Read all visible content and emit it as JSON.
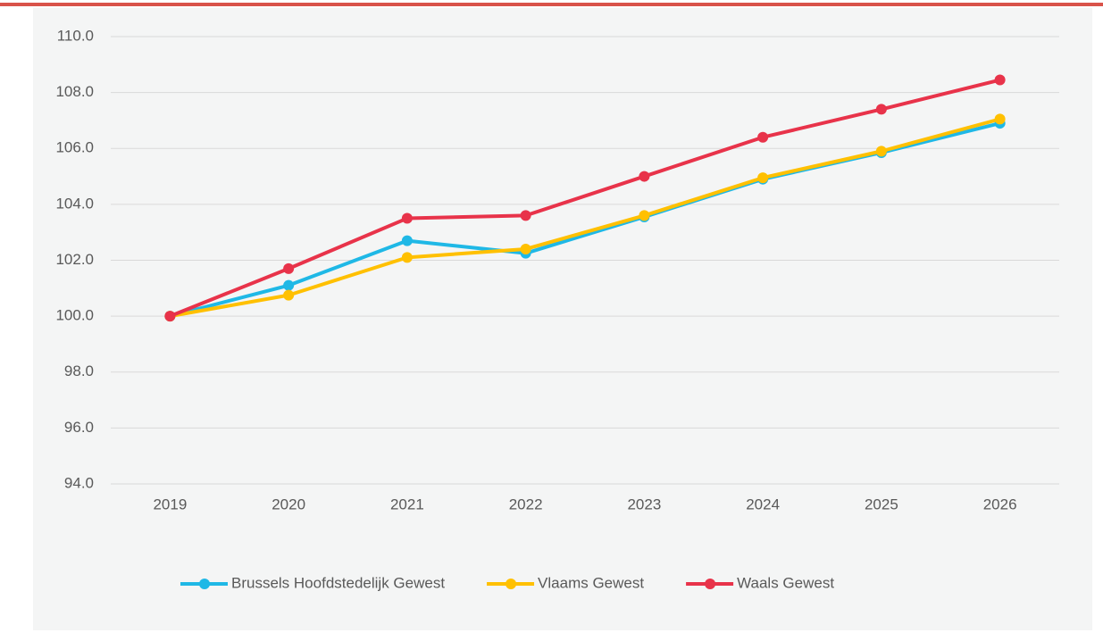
{
  "chart_data": {
    "type": "line",
    "categories": [
      "2019",
      "2020",
      "2021",
      "2022",
      "2023",
      "2024",
      "2025",
      "2026"
    ],
    "series": [
      {
        "name": "Brussels Hoofdstedelijk Gewest",
        "color": "#1fb8e6",
        "values": [
          100,
          101.1,
          102.7,
          102.25,
          103.55,
          104.9,
          105.85,
          106.9
        ]
      },
      {
        "name": "Vlaams Gewest",
        "color": "#ffc000",
        "values": [
          100,
          100.75,
          102.1,
          102.4,
          103.6,
          104.95,
          105.9,
          107.05
        ]
      },
      {
        "name": "Waals Gewest",
        "color": "#e8334a",
        "values": [
          100,
          101.7,
          103.5,
          103.6,
          105.0,
          106.4,
          107.4,
          108.45
        ]
      }
    ],
    "ylim": [
      94,
      110
    ],
    "yticks": [
      {
        "value": 94,
        "label": "94.0"
      },
      {
        "value": 96,
        "label": "96.0"
      },
      {
        "value": 98,
        "label": "98.0"
      },
      {
        "value": 100,
        "label": "100.0"
      },
      {
        "value": 102,
        "label": "102.0"
      },
      {
        "value": 104,
        "label": "104.0"
      },
      {
        "value": 106,
        "label": "106.0"
      },
      {
        "value": 108,
        "label": "108.0"
      },
      {
        "value": 110,
        "label": "110.0"
      }
    ],
    "grid": true,
    "legend": "bottom"
  }
}
